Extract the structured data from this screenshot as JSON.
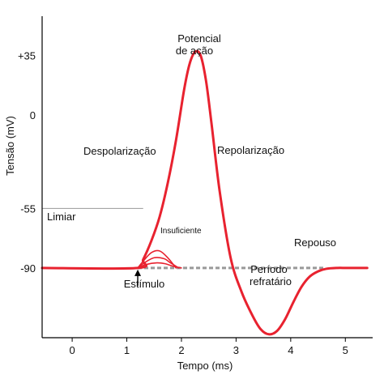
{
  "chart_data": {
    "type": "line",
    "xlabel": "Tempo (ms)",
    "ylabel": "Tensão (mV)",
    "xlim": [
      -0.55,
      5.5
    ],
    "ylim": [
      -131,
      58
    ],
    "x_ticks": [
      0,
      1,
      2,
      3,
      4,
      5
    ],
    "y_ticks": [
      {
        "value": 35,
        "label": "+35"
      },
      {
        "value": 0,
        "label": "0"
      },
      {
        "value": -55,
        "label": "-55"
      },
      {
        "value": -90,
        "label": "-90"
      }
    ],
    "grid": false,
    "colors": {
      "curve": "#e8222f",
      "resting_dashed": "#999999",
      "threshold_line": "#9a9a9a",
      "axis": "#000000"
    },
    "series": [
      {
        "name": "",
        "role": "action-potential",
        "x": [
          -0.55,
          1.2,
          1.3,
          1.45,
          1.6,
          1.75,
          1.9,
          2.05,
          2.15,
          2.25,
          2.35,
          2.45,
          2.55,
          2.7,
          2.9,
          3.1,
          3.3,
          3.45,
          3.6,
          3.75,
          3.9,
          4.05,
          4.2,
          4.35,
          4.5,
          4.65,
          4.85,
          5.0,
          5.15,
          5.4
        ],
        "y": [
          -90,
          -90,
          -85,
          -74,
          -60,
          -40,
          -15,
          15,
          30,
          37,
          35,
          20,
          -5,
          -45,
          -84,
          -104,
          -118,
          -126,
          -129,
          -127,
          -120,
          -110,
          -101,
          -95,
          -92,
          -90.5,
          -90,
          -90,
          -90,
          -90
        ]
      },
      {
        "name": "",
        "role": "insufficient-stimulus-1",
        "x": [
          1.2,
          1.3,
          1.45,
          1.6,
          1.75,
          1.9
        ],
        "y": [
          -90,
          -86,
          -81,
          -80,
          -84,
          -90
        ]
      },
      {
        "name": "",
        "role": "insufficient-stimulus-2",
        "x": [
          1.2,
          1.32,
          1.5,
          1.68,
          1.8,
          1.95
        ],
        "y": [
          -90,
          -87,
          -84,
          -84.5,
          -87,
          -90
        ]
      },
      {
        "name": "",
        "role": "insufficient-stimulus-3",
        "x": [
          1.2,
          1.35,
          1.55,
          1.7,
          1.85,
          2.0
        ],
        "y": [
          -90,
          -88,
          -87,
          -87.5,
          -89,
          -90
        ]
      }
    ],
    "threshold": {
      "x_start": -0.55,
      "x_end": 1.3,
      "y": -55
    },
    "resting_dashed": {
      "x_start": 1.2,
      "x_end": 4.6,
      "y": -90
    },
    "stimulus_x": 1.2,
    "annotations": {
      "peak_line1": "Potencial",
      "peak_line2": "de ação",
      "depolarization": "Despolarização",
      "repolarization": "Repolarização",
      "threshold": "Limiar",
      "insufficient": "Insuficiente",
      "resting": "Repouso",
      "refractory_line1": "Período",
      "refractory_line2": "refratário",
      "stimulus": "Estímulo"
    }
  }
}
